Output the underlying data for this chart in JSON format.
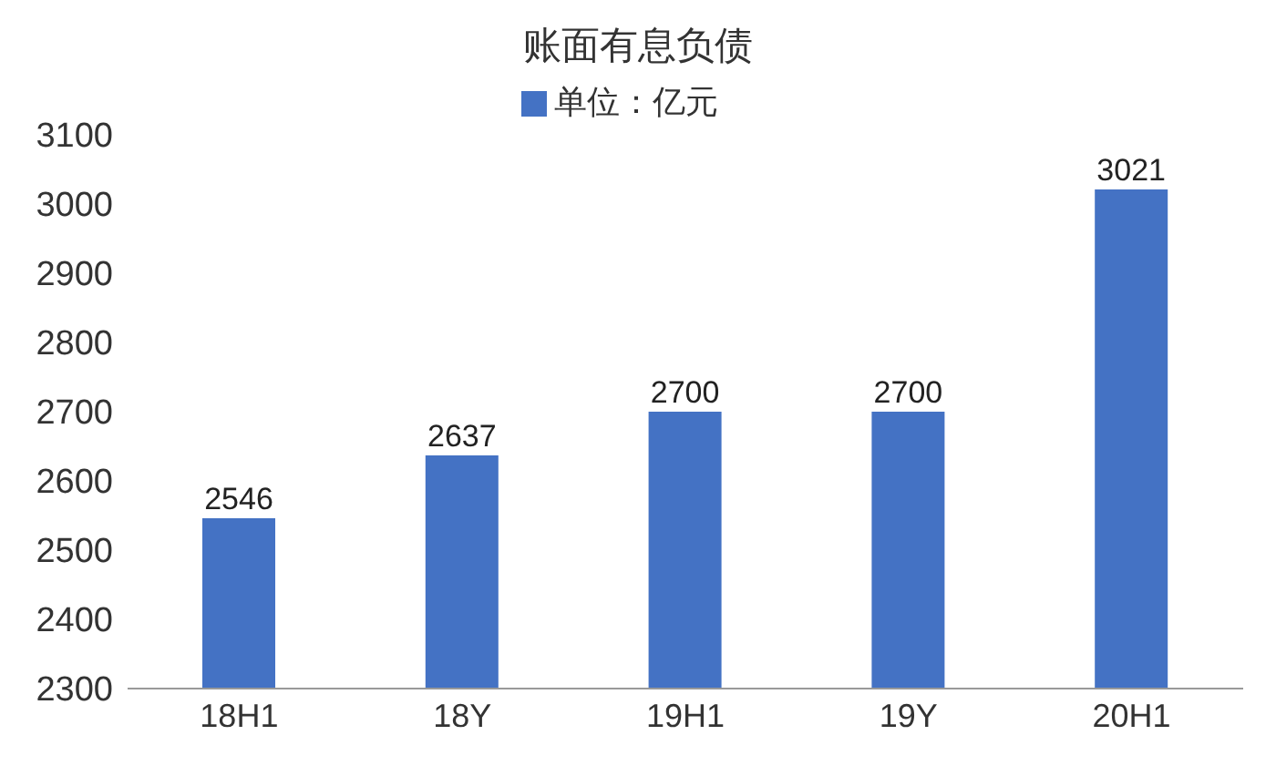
{
  "chart_data": {
    "type": "bar",
    "title": "账面有息负债",
    "categories": [
      "18H1",
      "18Y",
      "19H1",
      "19Y",
      "20H1"
    ],
    "series": [
      {
        "name": "单位：亿元",
        "color": "#4472c4",
        "values": [
          2546,
          2637,
          2700,
          2700,
          3021
        ]
      }
    ],
    "ylim": [
      2300,
      3100
    ],
    "yticks": [
      2300,
      2400,
      2500,
      2600,
      2700,
      2800,
      2900,
      3000,
      3100
    ],
    "grid": false,
    "legend": "top",
    "data_labels": true
  }
}
